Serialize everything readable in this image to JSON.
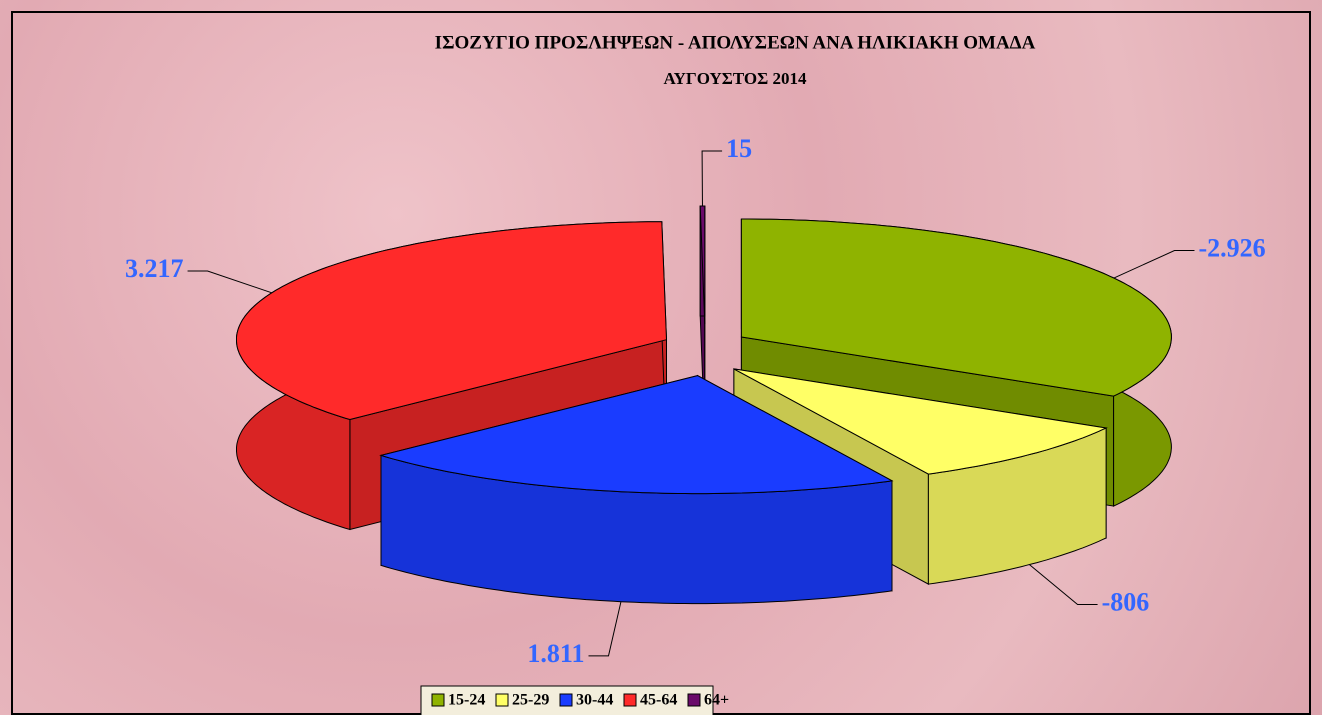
{
  "chart_data": {
    "type": "pie3d",
    "title": "ΙΣΟΖΥΓΙΟ ΠΡΟΣΛΗΨΕΩΝ - ΑΠΟΛΥΣΕΩΝ ΑΝΑ ΗΛΙΚΙΑΚΗ ΟΜΑΔΑ",
    "subtitle": "ΑΥΓΟΥΣΤΟΣ  2014",
    "categories": [
      "15-24",
      "25-29",
      "30-44",
      "45-64",
      "64+"
    ],
    "values": [
      -2926,
      -806,
      1811,
      3217,
      15
    ],
    "value_labels": [
      "-2.926",
      "-806",
      "1.811",
      "3.217",
      "15"
    ],
    "colors": [
      "#8fb300",
      "#ffff66",
      "#1a3cff",
      "#ff2a2a",
      "#6a0a6a"
    ],
    "legend": "bottom"
  }
}
